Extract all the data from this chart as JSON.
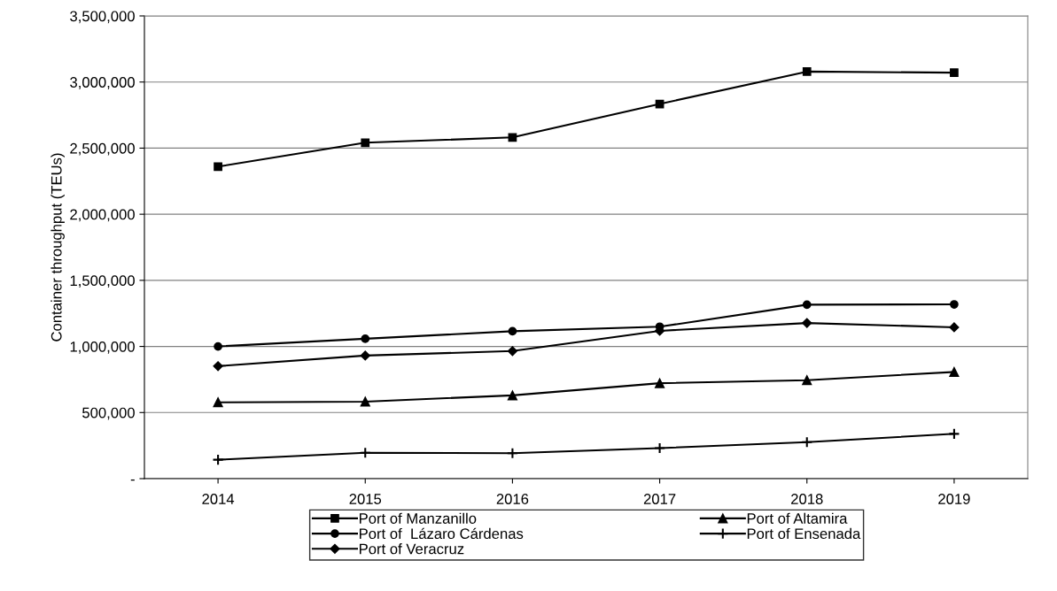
{
  "chart_data": {
    "type": "line",
    "ylabel": "Container throughput (TEUs)",
    "categories": [
      "2014",
      "2015",
      "2016",
      "2017",
      "2018",
      "2019"
    ],
    "ylim": [
      0,
      3500000
    ],
    "yticks": [
      {
        "value": 0,
        "label": "-"
      },
      {
        "value": 500000,
        "label": "500,000"
      },
      {
        "value": 1000000,
        "label": "1,000,000"
      },
      {
        "value": 1500000,
        "label": "1,500,000"
      },
      {
        "value": 2000000,
        "label": "2,000,000"
      },
      {
        "value": 2500000,
        "label": "2,500,000"
      },
      {
        "value": 3000000,
        "label": "3,000,000"
      },
      {
        "value": 3500000,
        "label": "3,500,000"
      }
    ],
    "grid": "y",
    "legend": "bottom",
    "line_style": "solid",
    "series": [
      {
        "name": "Port of Manzanillo",
        "color": "#000000",
        "marker": "square",
        "values": [
          2360000,
          2541000,
          2581000,
          2834000,
          3079000,
          3071000
        ]
      },
      {
        "name": "Port of  Lázaro Cárdenas",
        "color": "#000000",
        "marker": "circle",
        "values": [
          1000000,
          1058000,
          1115000,
          1149000,
          1316000,
          1318000
        ]
      },
      {
        "name": "Port of Veracruz",
        "color": "#000000",
        "marker": "diamond",
        "values": [
          851000,
          931000,
          965000,
          1118000,
          1177000,
          1145000
        ]
      },
      {
        "name": "Port of Altamira",
        "color": "#000000",
        "marker": "triangle",
        "values": [
          577000,
          582000,
          630000,
          722000,
          745000,
          807000
        ]
      },
      {
        "name": "Port of Ensenada",
        "color": "#000000",
        "marker": "cross",
        "values": [
          143000,
          196000,
          192000,
          231000,
          276000,
          339000
        ]
      }
    ]
  }
}
